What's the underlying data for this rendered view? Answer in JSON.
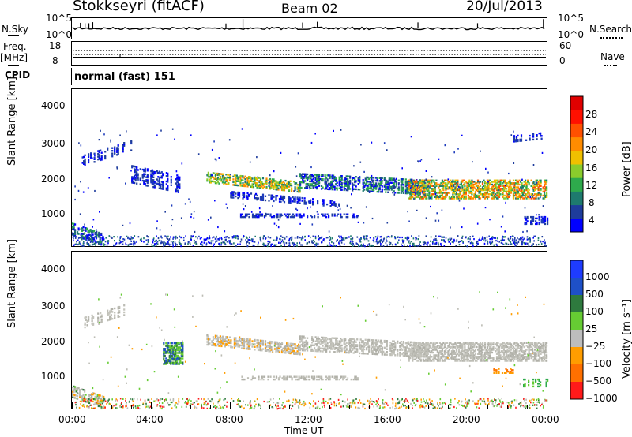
{
  "header": {
    "station": "Stokkseyri (fitACF)",
    "beam": "Beam 02",
    "date": "20/Jul/2013"
  },
  "left_labels": {
    "nsky": "N.Sky",
    "freq": "Freq.",
    "mhz": "[MHz]",
    "cpid": "CPID"
  },
  "right_labels": {
    "nsearch": "N.Search",
    "nave": "Nave"
  },
  "cpid_text": "normal (fast) 151",
  "colors": {
    "power": [
      "#0000ff",
      "#1e3c9c",
      "#1e7a6e",
      "#2eaa4c",
      "#8acc2c",
      "#f0c000",
      "#ff8c00",
      "#ff5000",
      "#ff1000",
      "#e00000"
    ],
    "velocity": [
      "#1e3cff",
      "#1e50c8",
      "#2e7a3e",
      "#66cc33",
      "#bdbdbd",
      "#ff9d00",
      "#ff7000",
      "#ff1a1a"
    ],
    "gray_scatter": "#bcbcb4"
  },
  "chart_data": [
    {
      "type": "line",
      "name": "noise_panel",
      "ylabel_left": "N.Sky",
      "ylabel_right": "N.Search",
      "yticks_left": [
        "10^5",
        "10^0"
      ],
      "yticks_right": [
        "10^5",
        "10^0"
      ]
    },
    {
      "type": "line",
      "name": "freq_panel",
      "yticks_left": [
        "18",
        "8"
      ],
      "yticks_right": [
        "60",
        "0"
      ]
    },
    {
      "type": "heatmap",
      "name": "power_panel",
      "ylabel": "Slant Range [km]",
      "yticks": [
        "4000",
        "3000",
        "2000",
        "1000"
      ],
      "colorbar_label": "Power [dB]",
      "colorbar_ticks": [
        "28",
        "24",
        "20",
        "16",
        "12",
        "8",
        "4"
      ]
    },
    {
      "type": "heatmap",
      "name": "velocity_panel",
      "ylabel": "Slant Range [km]",
      "yticks": [
        "4000",
        "3000",
        "2000",
        "1000"
      ],
      "colorbar_label": "Velocity [m s⁻¹]",
      "colorbar_ticks": [
        "1000",
        "500",
        "100",
        "25",
        "−25",
        "−100",
        "−500",
        "−1000"
      ]
    }
  ],
  "x_axis": {
    "ticks": [
      "00:00",
      "04:00",
      "08:00",
      "12:00",
      "16:00",
      "20:00",
      "00:00"
    ],
    "label": "Time UT"
  }
}
